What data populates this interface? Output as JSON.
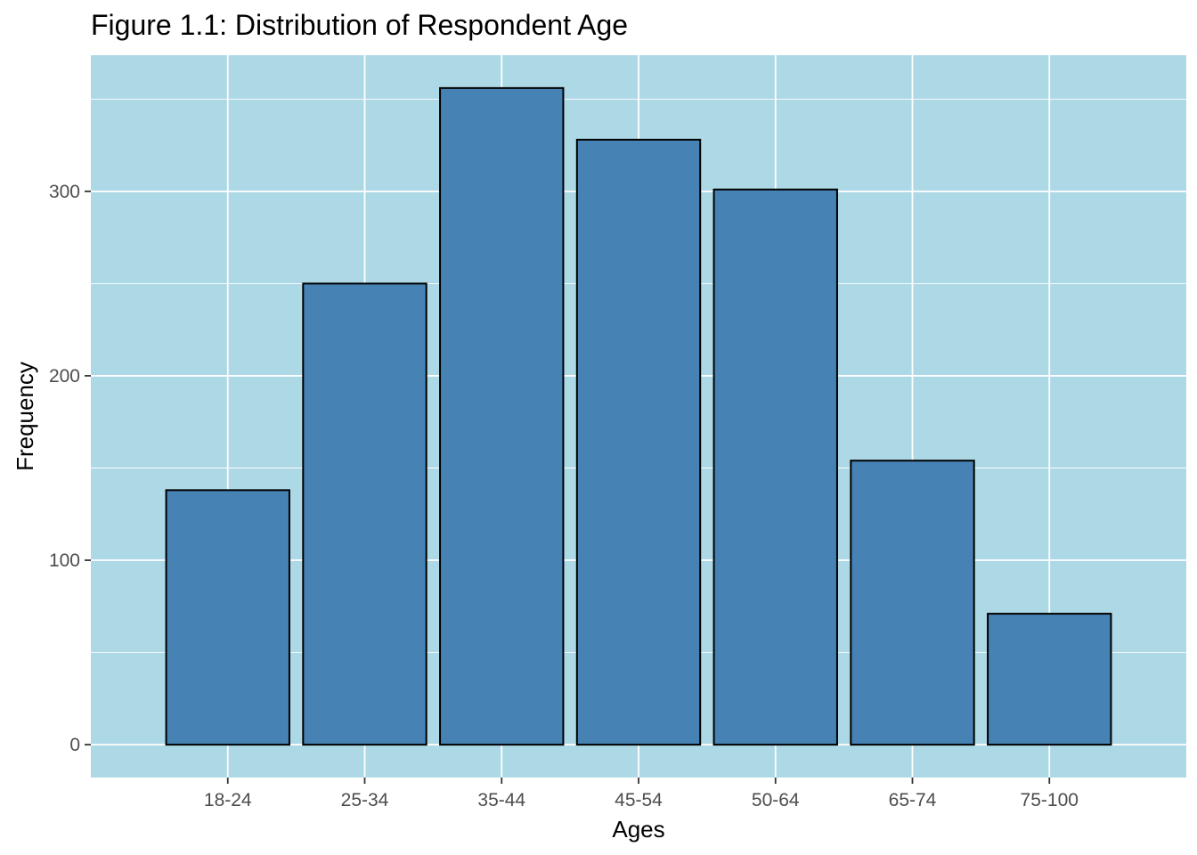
{
  "chart_data": {
    "type": "bar",
    "title": "Figure 1.1: Distribution of Respondent Age",
    "xlabel": "Ages",
    "ylabel": "Frequency",
    "categories": [
      "18-24",
      "25-34",
      "35-44",
      "45-54",
      "50-64",
      "65-74",
      "75-100"
    ],
    "values": [
      138,
      250,
      356,
      328,
      301,
      154,
      71
    ],
    "ylim": [
      -17.8,
      373.8
    ],
    "yticks": [
      0,
      100,
      200,
      300
    ],
    "ytick_labels": [
      "0",
      "100",
      "200",
      "300"
    ],
    "grid": true,
    "legend": "none",
    "colors": {
      "panel_background": "#add8e6",
      "gridline": "#ffffff",
      "bar_fill": "#4682b4",
      "bar_outline": "#000000",
      "tick_text": "#4d4d4d",
      "tick_mark": "#333333"
    }
  }
}
